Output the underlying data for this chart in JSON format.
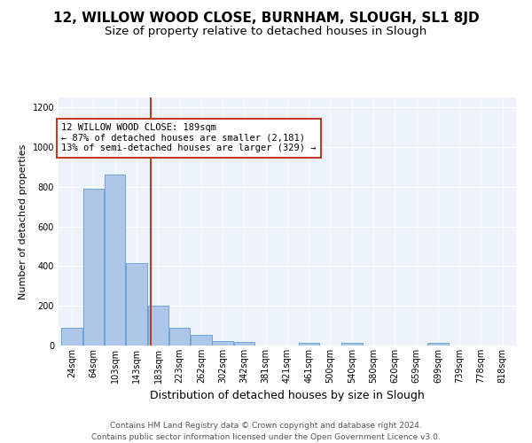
{
  "title1": "12, WILLOW WOOD CLOSE, BURNHAM, SLOUGH, SL1 8JD",
  "title2": "Size of property relative to detached houses in Slough",
  "xlabel": "Distribution of detached houses by size in Slough",
  "ylabel": "Number of detached properties",
  "annotation_line1": "12 WILLOW WOOD CLOSE: 189sqm",
  "annotation_line2": "← 87% of detached houses are smaller (2,181)",
  "annotation_line3": "13% of semi-detached houses are larger (329) →",
  "footer1": "Contains HM Land Registry data © Crown copyright and database right 2024.",
  "footer2": "Contains public sector information licensed under the Open Government Licence v3.0.",
  "property_size": 189,
  "bar_color": "#aec6e8",
  "bar_edgecolor": "#5b9bd5",
  "vline_color": "#c0392b",
  "annotation_box_edgecolor": "#c0392b",
  "background_color": "#eef2fb",
  "categories": [
    "24sqm",
    "64sqm",
    "103sqm",
    "143sqm",
    "183sqm",
    "223sqm",
    "262sqm",
    "302sqm",
    "342sqm",
    "381sqm",
    "421sqm",
    "461sqm",
    "500sqm",
    "540sqm",
    "580sqm",
    "620sqm",
    "659sqm",
    "699sqm",
    "739sqm",
    "778sqm",
    "818sqm"
  ],
  "bin_edges": [
    24,
    64,
    103,
    143,
    183,
    223,
    262,
    302,
    342,
    381,
    421,
    461,
    500,
    540,
    580,
    620,
    659,
    699,
    739,
    778,
    818,
    858
  ],
  "values": [
    90,
    790,
    860,
    415,
    200,
    88,
    55,
    22,
    17,
    0,
    0,
    15,
    0,
    13,
    0,
    0,
    0,
    13,
    0,
    0,
    0
  ],
  "ylim": [
    0,
    1250
  ],
  "yticks": [
    0,
    200,
    400,
    600,
    800,
    1000,
    1200
  ],
  "title1_fontsize": 11,
  "title2_fontsize": 9.5,
  "xlabel_fontsize": 9,
  "ylabel_fontsize": 8,
  "annotation_fontsize": 7.5,
  "footer_fontsize": 6.5,
  "tick_fontsize": 7
}
